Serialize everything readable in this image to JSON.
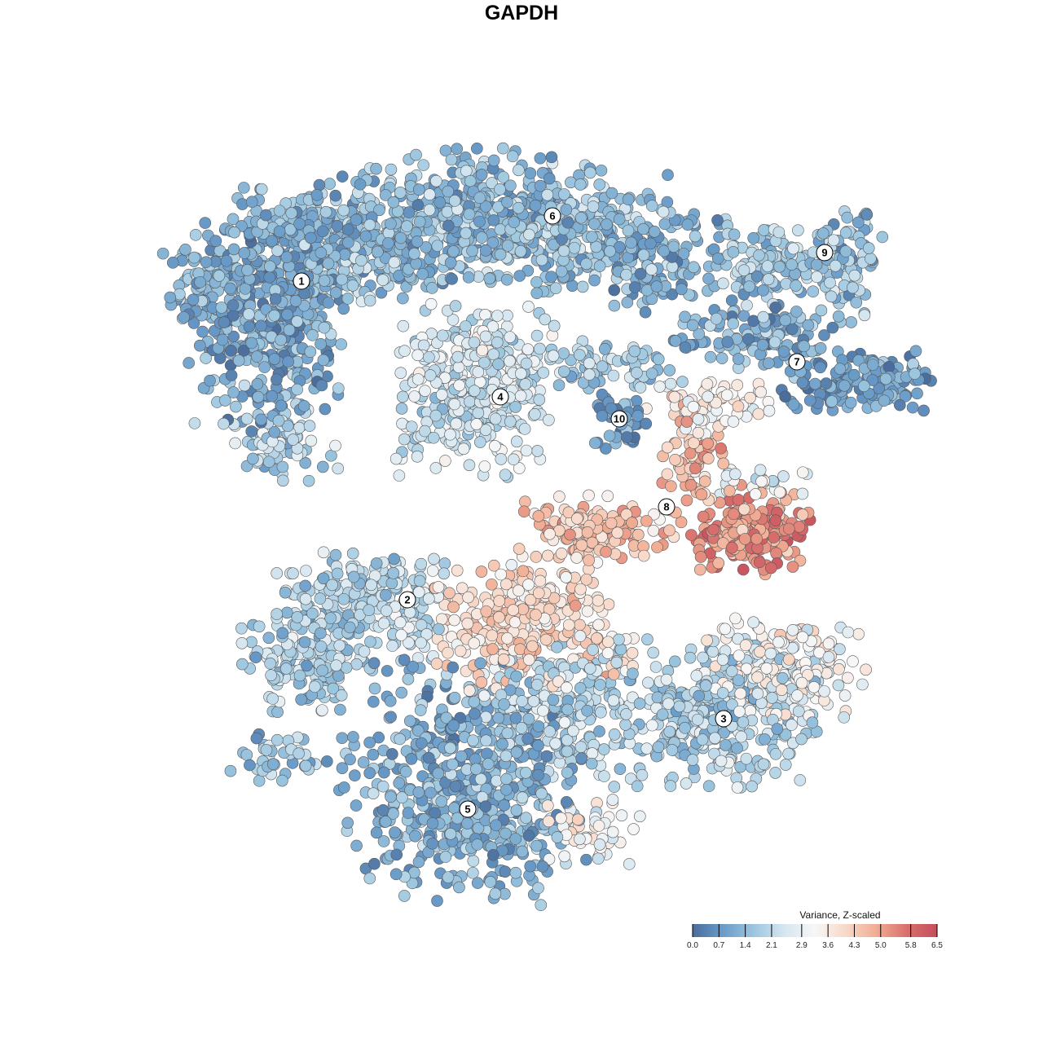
{
  "chart_data": {
    "type": "scatter",
    "title": "GAPDH",
    "xlabel": "",
    "ylabel": "",
    "grid": false,
    "axes_visible": false,
    "legend": {
      "title": "Variance, Z-scaled",
      "placement": "bottom-right",
      "range": [
        0.0,
        6.5
      ],
      "ticks": [
        "0.0",
        "0.7",
        "1.4",
        "2.1",
        "2.9",
        "3.6",
        "4.3",
        "5.0",
        "5.8",
        "6.5"
      ],
      "colors": [
        "#4a6d9c",
        "#6a9cc9",
        "#9cc6df",
        "#d5e6f0",
        "#f7f7f7",
        "#f8d9c9",
        "#f1ad93",
        "#d9706d",
        "#c44e5c"
      ]
    },
    "clusters": [
      {
        "label": "1",
        "center": [
          -27,
          29.5
        ]
      },
      {
        "label": "2",
        "center": [
          -14,
          -9.6
        ]
      },
      {
        "label": "3",
        "center": [
          24.8,
          -24.2
        ]
      },
      {
        "label": "4",
        "center": [
          -2.6,
          15.3
        ]
      },
      {
        "label": "5",
        "center": [
          -6.6,
          -35.3
        ]
      },
      {
        "label": "6",
        "center": [
          3.8,
          37.5
        ]
      },
      {
        "label": "7",
        "center": [
          33.8,
          19.6
        ]
      },
      {
        "label": "8",
        "center": [
          17.8,
          1.8
        ]
      },
      {
        "label": "9",
        "center": [
          37.2,
          33
        ]
      },
      {
        "label": "10",
        "center": [
          12,
          12.6
        ]
      }
    ],
    "point_groups": [
      {
        "center": [
          -31,
          26
        ],
        "spread": [
          4.5,
          7
        ],
        "n": 500,
        "value": 1.1
      },
      {
        "center": [
          -22,
          34
        ],
        "spread": [
          5,
          4
        ],
        "n": 300,
        "value": 1.5
      },
      {
        "center": [
          -29,
          10
        ],
        "spread": [
          3,
          2.5
        ],
        "n": 80,
        "value": 2.0
      },
      {
        "center": [
          -40,
          28
        ],
        "spread": [
          2,
          3
        ],
        "n": 60,
        "value": 1.4
      },
      {
        "center": [
          -8,
          37
        ],
        "spread": [
          6,
          4
        ],
        "n": 350,
        "value": 1.4
      },
      {
        "center": [
          6,
          36
        ],
        "spread": [
          6,
          4
        ],
        "n": 300,
        "value": 1.5
      },
      {
        "center": [
          16,
          32
        ],
        "spread": [
          4,
          3
        ],
        "n": 120,
        "value": 1.2
      },
      {
        "center": [
          32,
          32
        ],
        "spread": [
          5.5,
          2.5
        ],
        "n": 160,
        "value": 1.7
      },
      {
        "center": [
          41,
          32
        ],
        "spread": [
          1.5,
          3.5
        ],
        "n": 50,
        "value": 1.4
      },
      {
        "center": [
          28,
          23
        ],
        "spread": [
          5,
          2
        ],
        "n": 120,
        "value": 1.2
      },
      {
        "center": [
          41,
          17
        ],
        "spread": [
          4.5,
          2
        ],
        "n": 140,
        "value": 0.9
      },
      {
        "center": [
          -5.5,
          16
        ],
        "spread": [
          4.5,
          5
        ],
        "n": 400,
        "value": 2.4
      },
      {
        "center": [
          10,
          19
        ],
        "spread": [
          4.5,
          1.5
        ],
        "n": 80,
        "value": 1.8
      },
      {
        "center": [
          24,
          14
        ],
        "spread": [
          4,
          2
        ],
        "n": 60,
        "value": 3.2
      },
      {
        "center": [
          12,
          12
        ],
        "spread": [
          1.5,
          2
        ],
        "n": 50,
        "value": 0.8
      },
      {
        "center": [
          21,
          8
        ],
        "spread": [
          2,
          4
        ],
        "n": 80,
        "value": 4.5
      },
      {
        "center": [
          28,
          -1
        ],
        "spread": [
          3.5,
          2.5
        ],
        "n": 200,
        "value": 5.2
      },
      {
        "center": [
          9,
          -1
        ],
        "spread": [
          4.5,
          2
        ],
        "n": 140,
        "value": 4.4
      },
      {
        "center": [
          29,
          5
        ],
        "spread": [
          3,
          1
        ],
        "n": 30,
        "value": 3.0
      },
      {
        "center": [
          -20,
          -9
        ],
        "spread": [
          5,
          2.5
        ],
        "n": 200,
        "value": 2.1
      },
      {
        "center": [
          -26,
          -17
        ],
        "spread": [
          4,
          3
        ],
        "n": 150,
        "value": 1.9
      },
      {
        "center": [
          -13,
          -13
        ],
        "spread": [
          1.5,
          2
        ],
        "n": 40,
        "value": 2.5
      },
      {
        "center": [
          1,
          -13
        ],
        "spread": [
          6,
          4
        ],
        "n": 300,
        "value": 4.0
      },
      {
        "center": [
          24,
          -24
        ],
        "spread": [
          6,
          4.5
        ],
        "n": 350,
        "value": 2.0
      },
      {
        "center": [
          32,
          -18
        ],
        "spread": [
          5,
          3
        ],
        "n": 180,
        "value": 3.2
      },
      {
        "center": [
          -7,
          -32
        ],
        "spread": [
          7,
          7
        ],
        "n": 600,
        "value": 1.2
      },
      {
        "center": [
          6,
          -23
        ],
        "spread": [
          5,
          4
        ],
        "n": 200,
        "value": 2.2
      },
      {
        "center": [
          9,
          -38
        ],
        "spread": [
          3,
          2
        ],
        "n": 50,
        "value": 3.2
      },
      {
        "center": [
          -29,
          -29
        ],
        "spread": [
          3.5,
          1.5
        ],
        "n": 40,
        "value": 1.6
      }
    ]
  }
}
